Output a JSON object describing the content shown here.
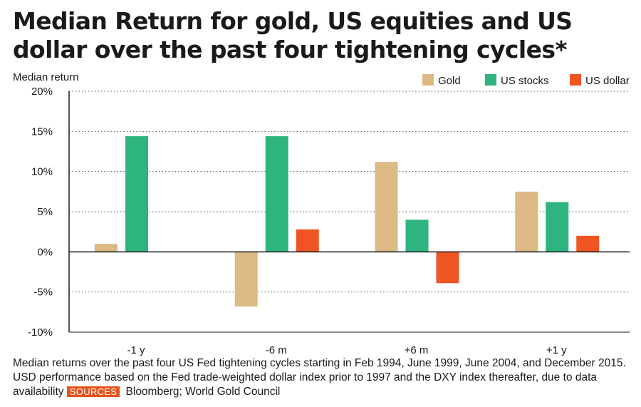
{
  "title_lines": [
    "Median Return for gold, US equities and US",
    "dollar over the past four tightening cycles*"
  ],
  "chart_data": {
    "type": "bar",
    "title": "Median Return for gold, US equities and US dollar over the past four tightening cycles*",
    "ylabel": "Median return",
    "xlabel": "",
    "ylim": [
      -10,
      20
    ],
    "yticks": [
      20,
      15,
      10,
      5,
      0,
      -5,
      -10
    ],
    "ytick_labels": [
      "20%",
      "15%",
      "10%",
      "5%",
      "0%",
      "-5%",
      "-10%"
    ],
    "grid": true,
    "legend_position": "top-right",
    "categories": [
      "-1 y",
      "-6 m",
      "+6 m",
      "+1 y"
    ],
    "series": [
      {
        "name": "Gold",
        "color": "#dcb985",
        "values": [
          1.0,
          -6.8,
          11.2,
          7.5
        ]
      },
      {
        "name": "US stocks",
        "color": "#2eb47e",
        "values": [
          14.4,
          14.4,
          4.0,
          6.2
        ]
      },
      {
        "name": "US dollar",
        "color": "#ef5523",
        "values": [
          0,
          2.8,
          -3.9,
          2.0
        ]
      }
    ]
  },
  "footnote": {
    "text": "Median returns over the past four US Fed tightening cycles starting in Feb 1994, June 1999, June 2004, and December 2015. USD performance based on the Fed trade-weighted dollar index prior to 1997 and the DXY index thereafter, due to data availability",
    "sources_label": "SOURCES",
    "sources_text": "Bloomberg; World Gold Council"
  }
}
